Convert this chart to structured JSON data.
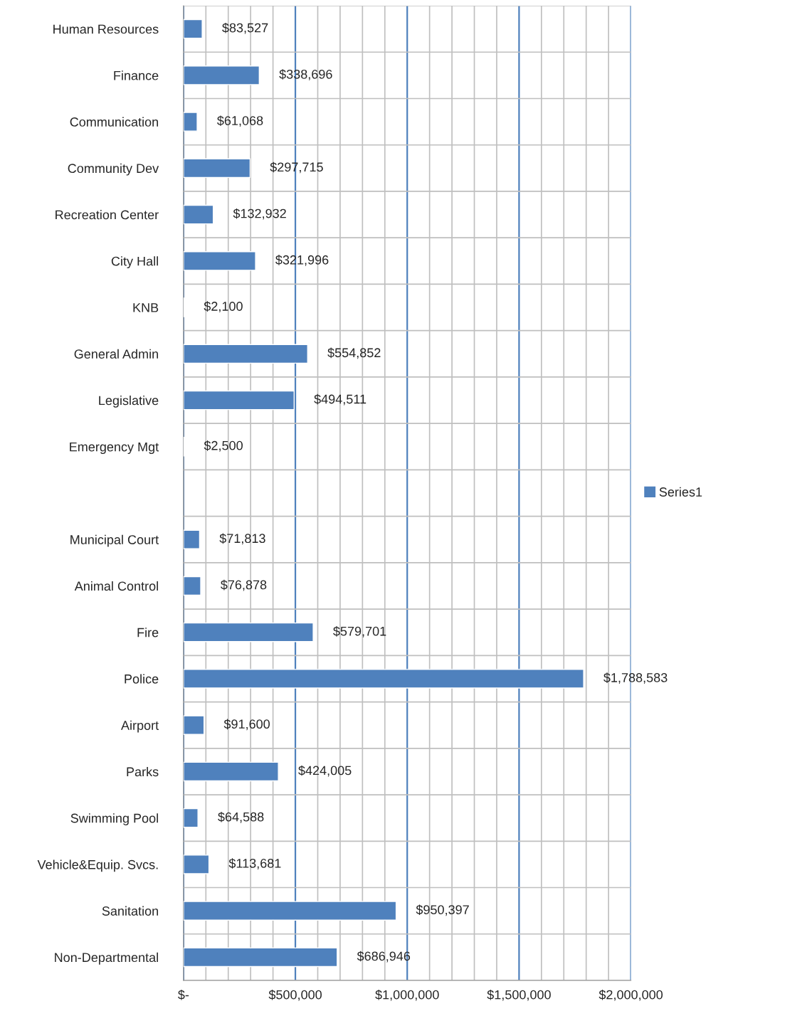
{
  "chart_data": {
    "type": "bar",
    "orientation": "horizontal",
    "categories": [
      "Human Resources",
      "Finance",
      "Communication",
      "Community Dev",
      "Recreation Center",
      "City Hall",
      "KNB",
      "General Admin",
      "Legislative",
      "Emergency Mgt",
      null,
      "Municipal Court",
      "Animal Control",
      "Fire",
      "Police",
      "Airport",
      "Parks",
      "Swimming Pool",
      "Vehicle&Equip. Svcs.",
      "Sanitation",
      "Non-Departmental"
    ],
    "series": [
      {
        "name": "Series1",
        "color": "#4f81bd",
        "values": [
          83527,
          338696,
          61068,
          297715,
          132932,
          321996,
          2100,
          554852,
          494511,
          2500,
          null,
          71813,
          76878,
          579701,
          1788583,
          91600,
          424005,
          64588,
          113681,
          950397,
          686946
        ],
        "value_labels": [
          "$83,527",
          "$338,696",
          "$61,068",
          "$297,715",
          "$132,932",
          "$321,996",
          "$2,100",
          "$554,852",
          "$494,511",
          "$2,500",
          null,
          "$71,813",
          "$76,878",
          "$579,701",
          "$1,788,583",
          "$91,600",
          "$424,005",
          "$64,588",
          "$113,681",
          "$950,397",
          "$686,946"
        ]
      }
    ],
    "xlim": [
      0,
      2000000
    ],
    "xticks": [
      {
        "value": 0,
        "label": "$-"
      },
      {
        "value": 100000,
        "label": null
      },
      {
        "value": 200000,
        "label": null
      },
      {
        "value": 300000,
        "label": null
      },
      {
        "value": 400000,
        "label": null
      },
      {
        "value": 500000,
        "label": "$500,000"
      },
      {
        "value": 600000,
        "label": null
      },
      {
        "value": 700000,
        "label": null
      },
      {
        "value": 800000,
        "label": null
      },
      {
        "value": 900000,
        "label": null
      },
      {
        "value": 1000000,
        "label": "$1,000,000"
      },
      {
        "value": 1100000,
        "label": null
      },
      {
        "value": 1200000,
        "label": null
      },
      {
        "value": 1300000,
        "label": null
      },
      {
        "value": 1400000,
        "label": null
      },
      {
        "value": 1500000,
        "label": "$1,500,000"
      },
      {
        "value": 1600000,
        "label": null
      },
      {
        "value": 1700000,
        "label": null
      },
      {
        "value": 1800000,
        "label": null
      },
      {
        "value": 1900000,
        "label": null
      },
      {
        "value": 2000000,
        "label": "$2,000,000"
      }
    ],
    "grid": true,
    "legend": "right"
  }
}
